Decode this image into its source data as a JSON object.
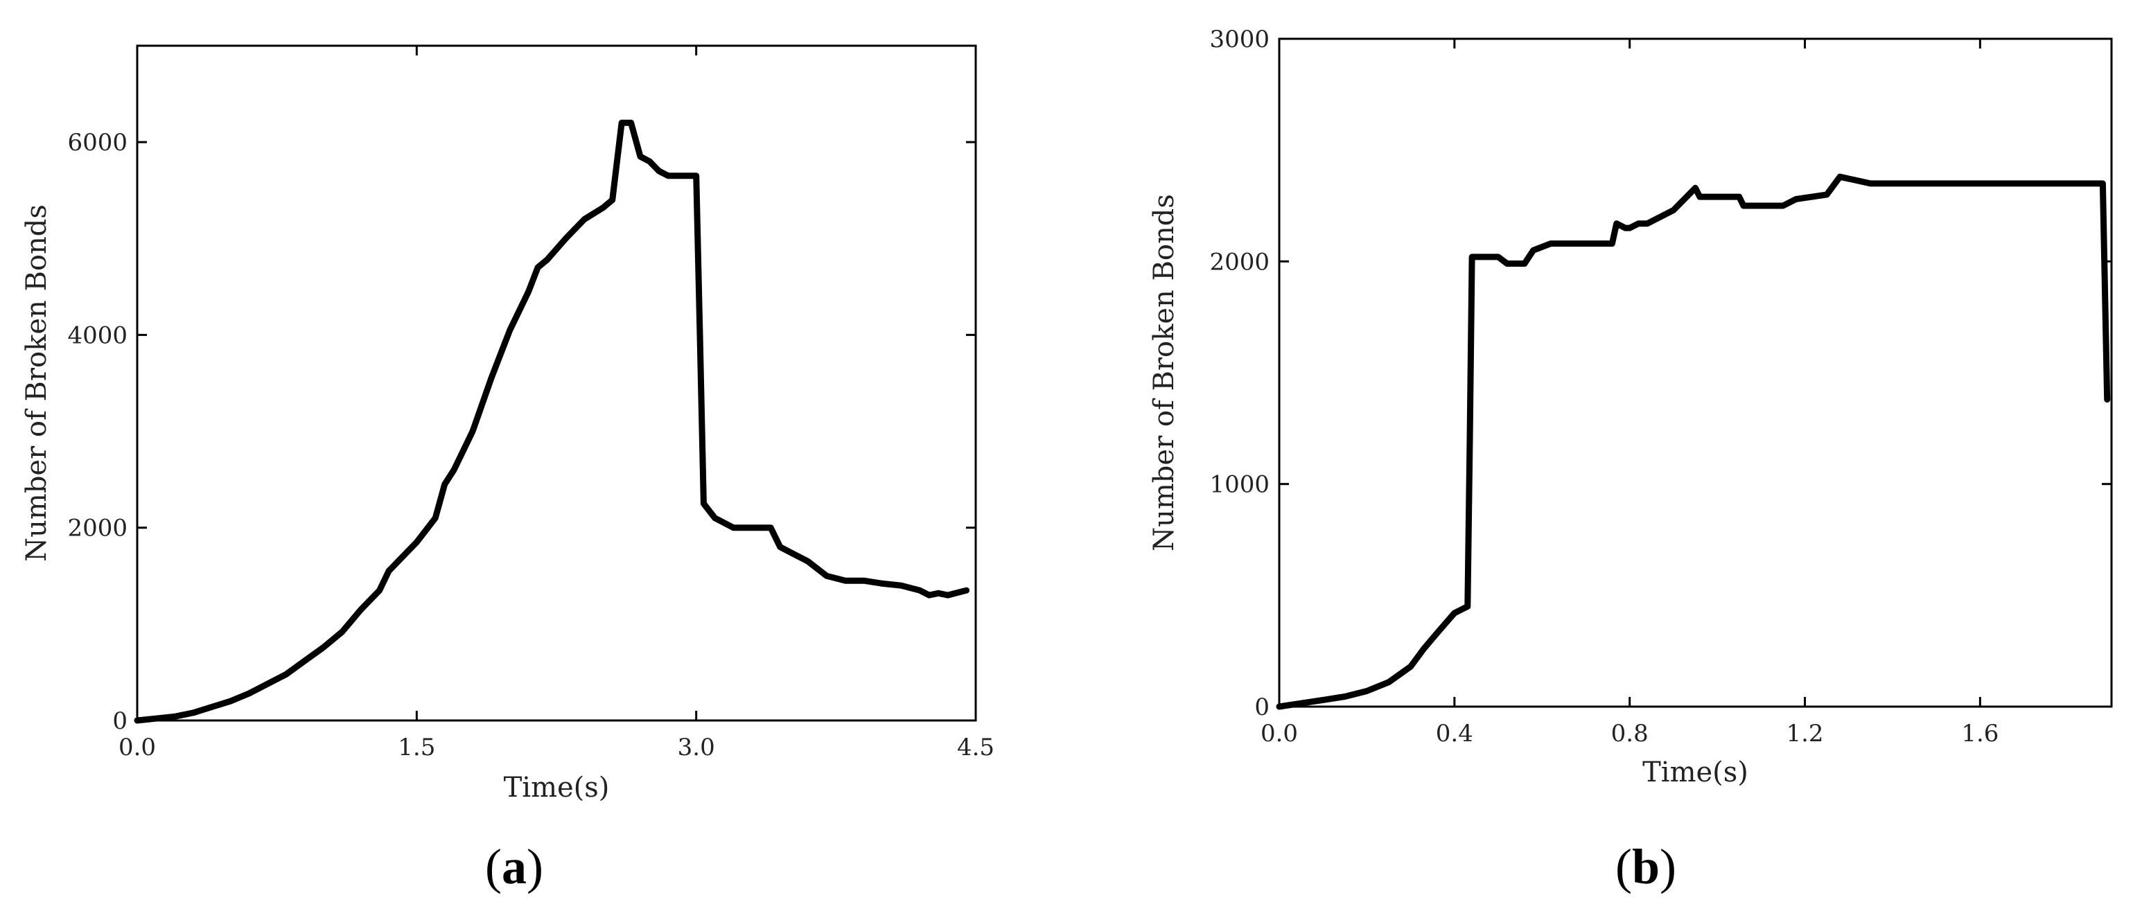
{
  "chart_data": [
    {
      "type": "line",
      "panel_label": "a",
      "xlabel": "Time(s)",
      "ylabel": "Number of Broken Bonds",
      "xlim": [
        0,
        4.5
      ],
      "ylim": [
        0,
        7000
      ],
      "xticks": [
        0,
        1.5,
        3.0,
        4.5
      ],
      "xtick_labels": [
        "0.0",
        "1.5",
        "3.0",
        "4.5"
      ],
      "yticks": [
        0,
        2000,
        4000,
        6000
      ],
      "ytick_labels": [
        "0",
        "2000",
        "4000",
        "6000"
      ],
      "grid": false,
      "series": [
        {
          "color": "#000000",
          "x": [
            0.0,
            0.1,
            0.2,
            0.3,
            0.4,
            0.5,
            0.6,
            0.7,
            0.8,
            0.9,
            1.0,
            1.1,
            1.2,
            1.3,
            1.35,
            1.4,
            1.5,
            1.6,
            1.65,
            1.7,
            1.8,
            1.9,
            1.95,
            2.0,
            2.1,
            2.15,
            2.2,
            2.3,
            2.4,
            2.5,
            2.55,
            2.6,
            2.65,
            2.7,
            2.75,
            2.8,
            2.85,
            3.0,
            3.02,
            3.04,
            3.06,
            3.1,
            3.2,
            3.3,
            3.4,
            3.45,
            3.5,
            3.6,
            3.7,
            3.8,
            3.9,
            4.0,
            4.1,
            4.2,
            4.25,
            4.3,
            4.35,
            4.45
          ],
          "y": [
            0,
            20,
            40,
            80,
            140,
            200,
            280,
            380,
            480,
            620,
            760,
            920,
            1150,
            1350,
            1550,
            1650,
            1850,
            2100,
            2450,
            2600,
            3000,
            3550,
            3800,
            4050,
            4450,
            4700,
            4780,
            5000,
            5200,
            5320,
            5400,
            6200,
            6200,
            5850,
            5800,
            5700,
            5650,
            5650,
            4000,
            2250,
            2200,
            2100,
            2000,
            2000,
            2000,
            1800,
            1750,
            1650,
            1500,
            1450,
            1450,
            1420,
            1400,
            1350,
            1300,
            1320,
            1300,
            1350
          ]
        }
      ]
    },
    {
      "type": "line",
      "panel_label": "b",
      "xlabel": "Time(s)",
      "ylabel": "Number of Broken Bonds",
      "xlim": [
        0,
        1.9
      ],
      "ylim": [
        0,
        3000
      ],
      "xticks": [
        0,
        0.4,
        0.8,
        1.2,
        1.6
      ],
      "xtick_labels": [
        "0.0",
        "0.4",
        "0.8",
        "1.2",
        "1.6"
      ],
      "yticks": [
        0,
        1000,
        2000,
        3000
      ],
      "ytick_labels": [
        "0",
        "1000",
        "2000",
        "3000"
      ],
      "grid": false,
      "series": [
        {
          "color": "#000000",
          "x": [
            0.0,
            0.05,
            0.1,
            0.15,
            0.2,
            0.25,
            0.3,
            0.33,
            0.36,
            0.4,
            0.43,
            0.435,
            0.44,
            0.5,
            0.52,
            0.56,
            0.58,
            0.62,
            0.66,
            0.76,
            0.77,
            0.79,
            0.8,
            0.82,
            0.84,
            0.9,
            0.95,
            0.96,
            1.05,
            1.06,
            1.15,
            1.18,
            1.25,
            1.28,
            1.35,
            1.55,
            1.75,
            1.87,
            1.88,
            1.89
          ],
          "y": [
            0,
            15,
            30,
            45,
            70,
            110,
            180,
            260,
            330,
            420,
            450,
            1200,
            2020,
            2020,
            1990,
            1990,
            2050,
            2080,
            2080,
            2080,
            2170,
            2150,
            2150,
            2170,
            2170,
            2230,
            2330,
            2290,
            2290,
            2250,
            2250,
            2280,
            2300,
            2380,
            2350,
            2350,
            2350,
            2350,
            2350,
            1380
          ]
        }
      ]
    }
  ]
}
